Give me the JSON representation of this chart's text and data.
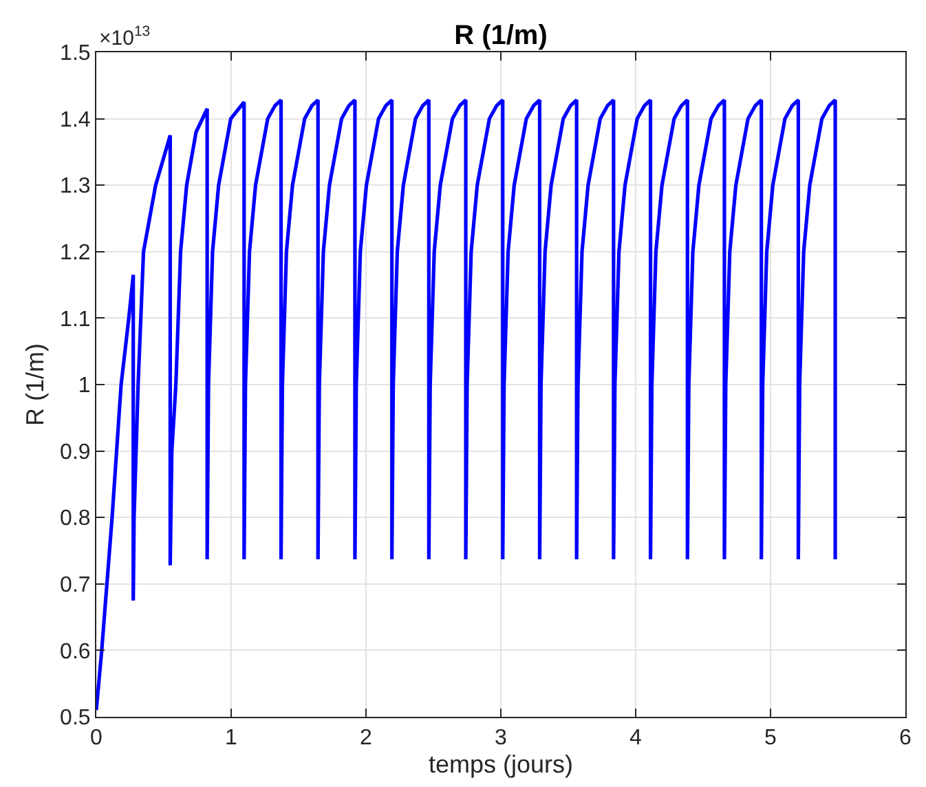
{
  "chart_data": {
    "type": "line",
    "title": "R (1/m)",
    "xlabel": "temps (jours)",
    "ylabel": "R (1/m)",
    "annotations": [
      "×10$^{13}$"
    ],
    "xlim": [
      0,
      6
    ],
    "xticks": [
      0,
      1,
      2,
      3,
      4,
      5,
      6
    ],
    "ylim": [
      0.5,
      1.5
    ],
    "yticks": [
      0.5,
      0.6,
      0.7,
      0.8,
      0.9,
      1,
      1.1,
      1.2,
      1.3,
      1.4,
      1.5
    ],
    "grid": true,
    "marker": "none",
    "line_style": "solid",
    "series": [
      {
        "color": "#0000ff",
        "x": [
          0,
          0.04,
          0.117,
          0.184,
          0.241,
          0.274,
          0.274,
          0.28,
          0.31,
          0.35,
          0.44,
          0.548,
          0.548,
          0.56,
          0.59,
          0.625,
          0.67,
          0.74,
          0.822,
          0.822,
          0.832,
          0.862,
          0.907,
          0.997,
          1.096,
          1.096,
          1.106,
          1.136,
          1.181,
          1.271,
          1.326,
          1.37,
          1.37,
          1.38,
          1.41,
          1.455,
          1.545,
          1.6,
          1.644,
          1.644,
          1.654,
          1.684,
          1.729,
          1.819,
          1.874,
          1.918,
          1.918,
          1.928,
          1.958,
          2.003,
          2.093,
          2.148,
          2.192,
          2.192,
          2.202,
          2.232,
          2.277,
          2.367,
          2.422,
          2.466,
          2.466,
          2.476,
          2.506,
          2.551,
          2.641,
          2.696,
          2.74,
          2.74,
          2.75,
          2.78,
          2.825,
          2.915,
          2.97,
          3.014,
          3.014,
          3.024,
          3.054,
          3.099,
          3.189,
          3.244,
          3.288,
          3.288,
          3.298,
          3.328,
          3.373,
          3.463,
          3.518,
          3.562,
          3.562,
          3.572,
          3.602,
          3.647,
          3.737,
          3.792,
          3.836,
          3.836,
          3.846,
          3.876,
          3.921,
          4.011,
          4.066,
          4.11,
          4.11,
          4.12,
          4.15,
          4.195,
          4.285,
          4.34,
          4.384,
          4.384,
          4.394,
          4.424,
          4.469,
          4.559,
          4.614,
          4.658,
          4.658,
          4.668,
          4.698,
          4.743,
          4.833,
          4.888,
          4.932,
          4.932,
          4.942,
          4.972,
          5.017,
          5.107,
          5.162,
          5.206,
          5.206,
          5.216,
          5.246,
          5.291,
          5.381,
          5.436,
          5.48,
          5.48
        ],
        "values": [
          0.51,
          0.6,
          0.8,
          1.0,
          1.1,
          1.165,
          0.675,
          0.8,
          1.0,
          1.2,
          1.3,
          1.375,
          0.728,
          0.9,
          1.0,
          1.2,
          1.3,
          1.38,
          1.415,
          0.737,
          1.0,
          1.2,
          1.3,
          1.4,
          1.425,
          0.737,
          1.0,
          1.2,
          1.3,
          1.4,
          1.42,
          1.428,
          0.737,
          1.0,
          1.2,
          1.3,
          1.4,
          1.42,
          1.428,
          0.737,
          1.0,
          1.2,
          1.3,
          1.4,
          1.42,
          1.428,
          0.737,
          1.0,
          1.2,
          1.3,
          1.4,
          1.42,
          1.428,
          0.737,
          1.0,
          1.2,
          1.3,
          1.4,
          1.42,
          1.428,
          0.737,
          1.0,
          1.2,
          1.3,
          1.4,
          1.42,
          1.428,
          0.737,
          1.0,
          1.2,
          1.3,
          1.4,
          1.42,
          1.428,
          0.737,
          1.0,
          1.2,
          1.3,
          1.4,
          1.42,
          1.428,
          0.737,
          1.0,
          1.2,
          1.3,
          1.4,
          1.42,
          1.428,
          0.737,
          1.0,
          1.2,
          1.3,
          1.4,
          1.42,
          1.428,
          0.737,
          1.0,
          1.2,
          1.3,
          1.4,
          1.42,
          1.428,
          0.737,
          1.0,
          1.2,
          1.3,
          1.4,
          1.42,
          1.428,
          0.737,
          1.0,
          1.2,
          1.3,
          1.4,
          1.42,
          1.428,
          0.737,
          1.0,
          1.2,
          1.3,
          1.4,
          1.42,
          1.428,
          0.737,
          1.0,
          1.2,
          1.3,
          1.4,
          1.42,
          1.428,
          0.737,
          1.0,
          1.2,
          1.3,
          1.4,
          1.42,
          1.428,
          0.737
        ]
      }
    ]
  }
}
